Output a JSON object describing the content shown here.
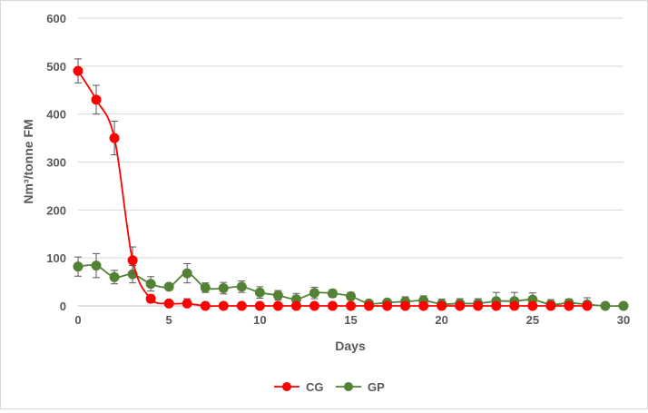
{
  "chart_data": {
    "type": "line",
    "xlabel": "Days",
    "ylabel": "Nm³/tonne FM",
    "xlim": [
      0,
      30
    ],
    "ylim": [
      0,
      600
    ],
    "xticks": [
      0,
      5,
      10,
      15,
      20,
      25,
      30
    ],
    "yticks": [
      0,
      100,
      200,
      300,
      400,
      500,
      600
    ],
    "grid": "horizontal",
    "legend_position": "bottom",
    "error_bars": true,
    "series": [
      {
        "name": "CG",
        "color": "#ff0000",
        "x": [
          0,
          1,
          2,
          3,
          4,
          5,
          6,
          7,
          8,
          9,
          10,
          11,
          12,
          13,
          14,
          15,
          16,
          17,
          18,
          19,
          20,
          21,
          22,
          23,
          24,
          25,
          26,
          27,
          28
        ],
        "values": [
          490,
          430,
          350,
          95,
          15,
          5,
          5,
          0,
          0,
          0,
          0,
          0,
          0,
          0,
          0,
          0,
          0,
          0,
          0,
          0,
          0,
          0,
          0,
          0,
          0,
          0,
          0,
          0,
          0
        ],
        "errors": [
          25,
          30,
          35,
          28,
          8,
          6,
          10,
          2,
          2,
          2,
          2,
          2,
          2,
          2,
          2,
          2,
          2,
          2,
          2,
          2,
          2,
          2,
          2,
          2,
          2,
          2,
          2,
          2,
          2
        ]
      },
      {
        "name": "GP",
        "color": "#548235",
        "x": [
          0,
          1,
          2,
          3,
          4,
          5,
          6,
          7,
          8,
          9,
          10,
          11,
          12,
          13,
          14,
          15,
          16,
          17,
          18,
          19,
          20,
          21,
          22,
          23,
          24,
          25,
          26,
          27,
          28,
          29,
          30
        ],
        "values": [
          82,
          84,
          60,
          66,
          46,
          40,
          68,
          38,
          37,
          40,
          28,
          22,
          14,
          27,
          26,
          20,
          5,
          7,
          9,
          11,
          4,
          5,
          5,
          10,
          10,
          13,
          3,
          6,
          3,
          0,
          0
        ],
        "errors": [
          20,
          25,
          14,
          18,
          15,
          6,
          20,
          10,
          12,
          12,
          12,
          10,
          12,
          12,
          8,
          8,
          5,
          6,
          10,
          10,
          10,
          10,
          10,
          18,
          18,
          14,
          10,
          8,
          14,
          2,
          2
        ]
      }
    ]
  }
}
